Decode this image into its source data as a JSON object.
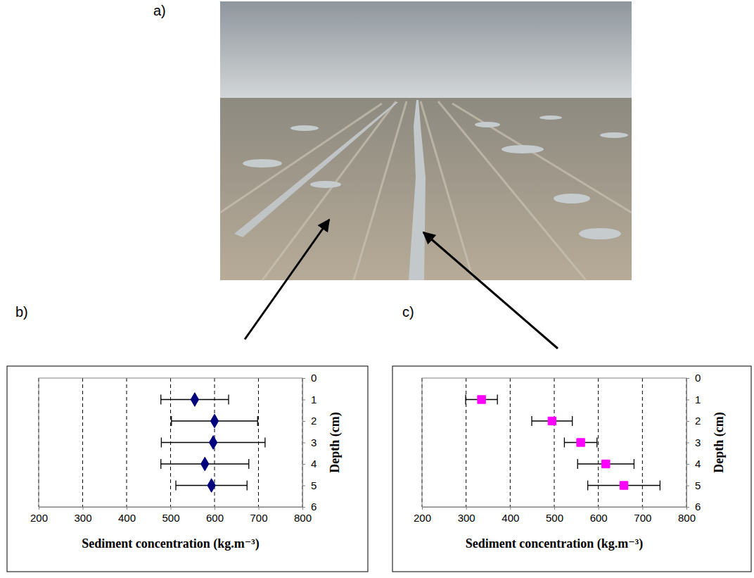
{
  "photo": {
    "label": "a)"
  },
  "chart_data": [
    {
      "type": "scatter",
      "label": "b)",
      "x": [
        555,
        600,
        597,
        578,
        593
      ],
      "x_error": [
        77,
        98,
        118,
        100,
        81
      ],
      "y": [
        1,
        2,
        3,
        4,
        5
      ],
      "xlim": [
        200,
        800
      ],
      "xticks": [
        200,
        300,
        400,
        500,
        600,
        700,
        800
      ],
      "ylim": [
        6,
        0
      ],
      "yticks": [
        0,
        1,
        2,
        3,
        4,
        5,
        6
      ],
      "xlabel": "Sediment concentration (kg.m⁻³)",
      "ylabel": "Depth (cm)",
      "color": "#00007f",
      "marker": "diamond",
      "grid": true
    },
    {
      "type": "scatter",
      "label": "c)",
      "x": [
        335,
        495,
        560,
        617,
        658
      ],
      "x_error": [
        36,
        46,
        37,
        64,
        82
      ],
      "y": [
        1,
        2,
        3,
        4,
        5
      ],
      "xlim": [
        200,
        800
      ],
      "xticks": [
        200,
        300,
        400,
        500,
        600,
        700,
        800
      ],
      "ylim": [
        6,
        0
      ],
      "yticks": [
        0,
        1,
        2,
        3,
        4,
        5,
        6
      ],
      "xlabel": "Sediment concentration (kg.m⁻³)",
      "ylabel": "Depth (cm)",
      "color": "#ff00ff",
      "marker": "square",
      "grid": true
    }
  ]
}
